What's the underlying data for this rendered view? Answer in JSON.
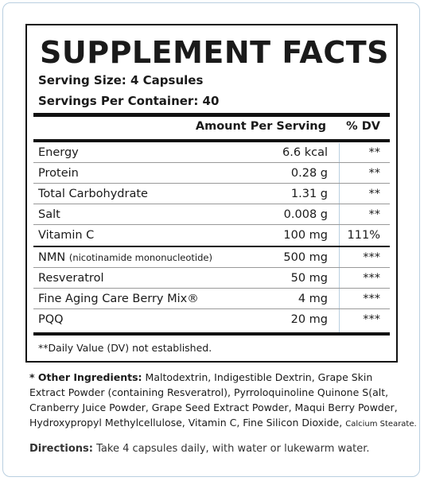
{
  "title": "SUPPLEMENT FACTS",
  "serving_size": "Serving Size: 4 Capsules",
  "servings_per_container": "Servings Per Container: 40",
  "table": {
    "header": [
      "Amount Per Serving",
      "% DV"
    ],
    "rows": [
      {
        "name": "Energy",
        "amount": "6.6 kcal",
        "dv": "**"
      },
      {
        "name": "Protein",
        "amount": "0.28 g",
        "dv": "**"
      },
      {
        "name": "Total Carbohydrate",
        "amount": "1.31 g",
        "dv": "**"
      },
      {
        "name": "Salt",
        "amount": "0.008 g",
        "dv": "**"
      },
      {
        "name": "Vitamin C",
        "amount": "100 mg",
        "dv": "111%"
      },
      {
        "name": "NMN",
        "note": "(nicotinamide mononucleotide)",
        "amount": "500 mg",
        "dv": "***"
      },
      {
        "name": "Resveratrol",
        "amount": "50 mg",
        "dv": "***"
      },
      {
        "name": "Fine Aging Care Berry Mix®",
        "amount": "4 mg",
        "dv": "***"
      },
      {
        "name": "PQQ",
        "amount": "20 mg",
        "dv": "***"
      }
    ],
    "footnote": "**Daily Value (DV) not established."
  },
  "ingredients": {
    "label": "* Other Ingredients:",
    "lines": [
      "Maltodextrin, Indigestible Dextrin, Grape Skin",
      "Extract Powder (containing Resveratrol), Pyrroloquinoline Quinone S(alt,",
      "Cranberry Juice Powder, Grape Seed Extract Powder, Maqui Berry Powder,",
      "Hydroxypropyl Methylcellulose, Vitamin C, Fine Silicon Dioxide,"
    ],
    "tail": "Calcium Stearate."
  },
  "directions": {
    "label": "Directions:",
    "text": "Take 4 capsules daily, with water or lukewarm water."
  }
}
